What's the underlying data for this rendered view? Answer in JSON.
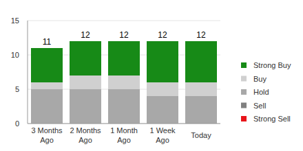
{
  "chart_data": {
    "type": "bar",
    "stacked": true,
    "grid": true,
    "legend": "right",
    "categories": [
      "3 Months Ago",
      "2 Months Ago",
      "1 Month Ago",
      "1 Week Ago",
      "Today"
    ],
    "series": [
      {
        "name": "Strong Buy",
        "color": "#178a17",
        "values": [
          5,
          5,
          5,
          6,
          6
        ]
      },
      {
        "name": "Buy",
        "color": "#d0d0d0",
        "values": [
          1,
          2,
          2,
          2,
          2
        ]
      },
      {
        "name": "Hold",
        "color": "#a8a8a8",
        "values": [
          5,
          5,
          5,
          4,
          4
        ]
      },
      {
        "name": "Sell",
        "color": "#808080",
        "values": [
          0,
          0,
          0,
          0,
          0
        ]
      },
      {
        "name": "Strong Sell",
        "color": "#e8141a",
        "values": [
          0,
          0,
          0,
          0,
          0
        ]
      }
    ],
    "totals": [
      11,
      12,
      12,
      12,
      12
    ],
    "ylim": [
      0,
      15
    ],
    "yticks": [
      0,
      5,
      10,
      15
    ]
  }
}
